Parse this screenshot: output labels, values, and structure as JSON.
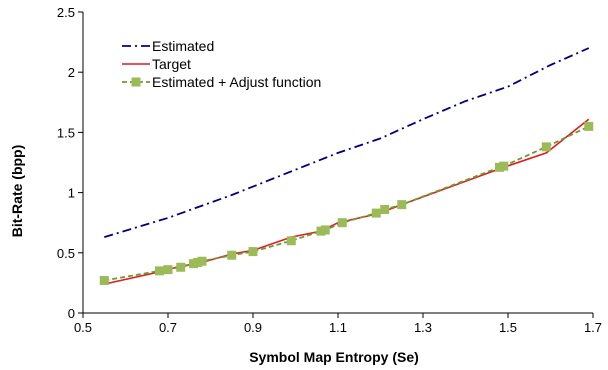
{
  "chart_data": {
    "type": "line",
    "title": "",
    "xlabel": "Symbol Map Entropy (Se)",
    "ylabel": "Bit-Rate (bpp)",
    "xlim": [
      0.5,
      1.7
    ],
    "ylim": [
      0,
      2.5
    ],
    "x_ticks": [
      "0.5",
      "0.7",
      "0.9",
      "1.1",
      "1.3",
      "1.5",
      "1.7"
    ],
    "y_ticks": [
      "0",
      "0.5",
      "1",
      "1.5",
      "2",
      "2.5"
    ],
    "grid": false,
    "legend_position": "top-left",
    "series": [
      {
        "name": "Estimated",
        "style": "dash-dot",
        "color": "#000080",
        "points": [
          [
            0.55,
            0.63
          ],
          [
            0.7,
            0.79
          ],
          [
            0.85,
            0.98
          ],
          [
            1.0,
            1.19
          ],
          [
            1.1,
            1.33
          ],
          [
            1.2,
            1.45
          ],
          [
            1.3,
            1.61
          ],
          [
            1.4,
            1.76
          ],
          [
            1.5,
            1.88
          ],
          [
            1.6,
            2.06
          ],
          [
            1.69,
            2.2
          ]
        ]
      },
      {
        "name": "Target",
        "style": "solid",
        "color": "#e41a1c",
        "points": [
          [
            0.55,
            0.24
          ],
          [
            0.69,
            0.35
          ],
          [
            0.73,
            0.39
          ],
          [
            0.77,
            0.41
          ],
          [
            0.85,
            0.49
          ],
          [
            0.9,
            0.52
          ],
          [
            0.99,
            0.63
          ],
          [
            1.06,
            0.68
          ],
          [
            1.1,
            0.75
          ],
          [
            1.2,
            0.83
          ],
          [
            1.22,
            0.86
          ],
          [
            1.25,
            0.9
          ],
          [
            1.49,
            1.21
          ],
          [
            1.59,
            1.33
          ],
          [
            1.69,
            1.61
          ]
        ]
      },
      {
        "name": "Estimated + Adjust function",
        "style": "dashed-square",
        "color": "#6b9a35",
        "marker_color": "#9bbb59",
        "points": [
          [
            0.55,
            0.27
          ],
          [
            0.68,
            0.35
          ],
          [
            0.7,
            0.36
          ],
          [
            0.73,
            0.38
          ],
          [
            0.76,
            0.41
          ],
          [
            0.77,
            0.42
          ],
          [
            0.78,
            0.43
          ],
          [
            0.85,
            0.48
          ],
          [
            0.9,
            0.51
          ],
          [
            0.99,
            0.6
          ],
          [
            1.06,
            0.68
          ],
          [
            1.07,
            0.69
          ],
          [
            1.11,
            0.75
          ],
          [
            1.19,
            0.83
          ],
          [
            1.21,
            0.86
          ],
          [
            1.25,
            0.9
          ],
          [
            1.48,
            1.21
          ],
          [
            1.49,
            1.22
          ],
          [
            1.59,
            1.38
          ],
          [
            1.69,
            1.55
          ]
        ]
      }
    ]
  }
}
